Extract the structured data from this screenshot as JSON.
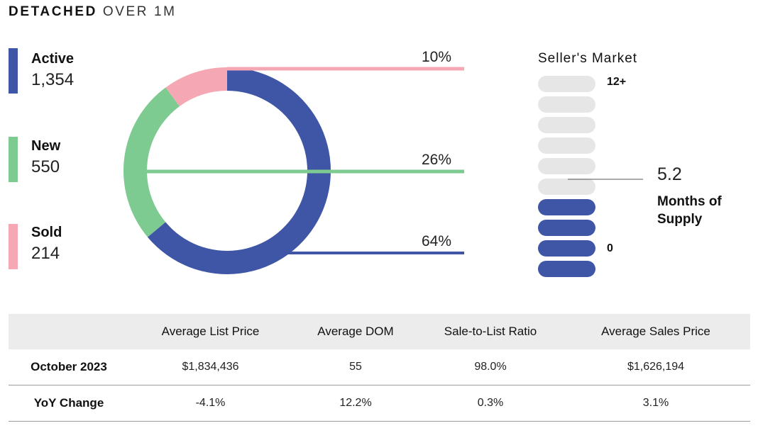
{
  "title": {
    "bold": "DETACHED",
    "light": "OVER 1M"
  },
  "chart_data": {
    "type": "pie",
    "variant": "donut",
    "categories": [
      "Active",
      "New",
      "Sold"
    ],
    "values": [
      1354,
      550,
      214
    ],
    "value_labels": [
      "1,354",
      "550",
      "214"
    ],
    "percent_labels": [
      "64%",
      "26%",
      "10%"
    ],
    "colors": [
      "#3f55a6",
      "#7dcb91",
      "#f5a8b4"
    ],
    "legend_position": "left"
  },
  "supply_meter": {
    "title": "Seller's Market",
    "max_label": "12+",
    "min_label": "0",
    "value": 5.2,
    "value_label": "5.2",
    "label": "Months of Supply",
    "segments": 10,
    "filled_segments": 4,
    "filled_color": "#3f55a6",
    "empty_color": "#e6e6e6"
  },
  "table": {
    "columns": [
      "",
      "Average List Price",
      "Average DOM",
      "Sale-to-List Ratio",
      "Average Sales Price"
    ],
    "rows": [
      [
        "October 2023",
        "$1,834,436",
        "55",
        "98.0%",
        "$1,626,194"
      ],
      [
        "YoY Change",
        "-4.1%",
        "12.2%",
        "0.3%",
        "3.1%"
      ]
    ]
  }
}
